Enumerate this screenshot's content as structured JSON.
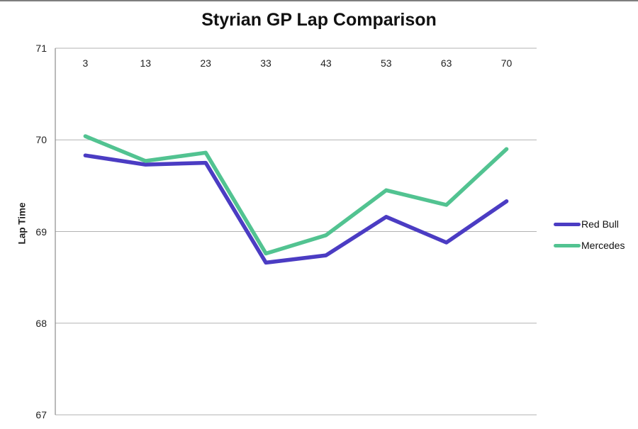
{
  "window": {
    "top_edge_color": "#7e7e7e",
    "background": "#ffffff"
  },
  "chart_data": {
    "type": "line",
    "title": "Styrian GP Lap Comparison",
    "xlabel": "",
    "ylabel": "Lap Time",
    "categories": [
      "3",
      "13",
      "23",
      "33",
      "43",
      "53",
      "63",
      "70"
    ],
    "series": [
      {
        "name": "Red Bull",
        "color": "#4b3cc3",
        "values": [
          69.83,
          69.73,
          69.75,
          68.66,
          68.74,
          69.16,
          68.88,
          69.33
        ]
      },
      {
        "name": "Mercedes",
        "color": "#52c391",
        "values": [
          70.04,
          69.77,
          69.86,
          68.76,
          68.96,
          69.45,
          69.29,
          69.9
        ]
      }
    ],
    "ylim": [
      67,
      71
    ],
    "yticks": [
      "71",
      "70",
      "69",
      "68",
      "67"
    ],
    "grid": true,
    "gridline_color": "#b3b3b3",
    "axis_color": "#8c8c8c",
    "legend_position": "right",
    "x_labels_position": "inside-top",
    "line_width": 5.5
  }
}
